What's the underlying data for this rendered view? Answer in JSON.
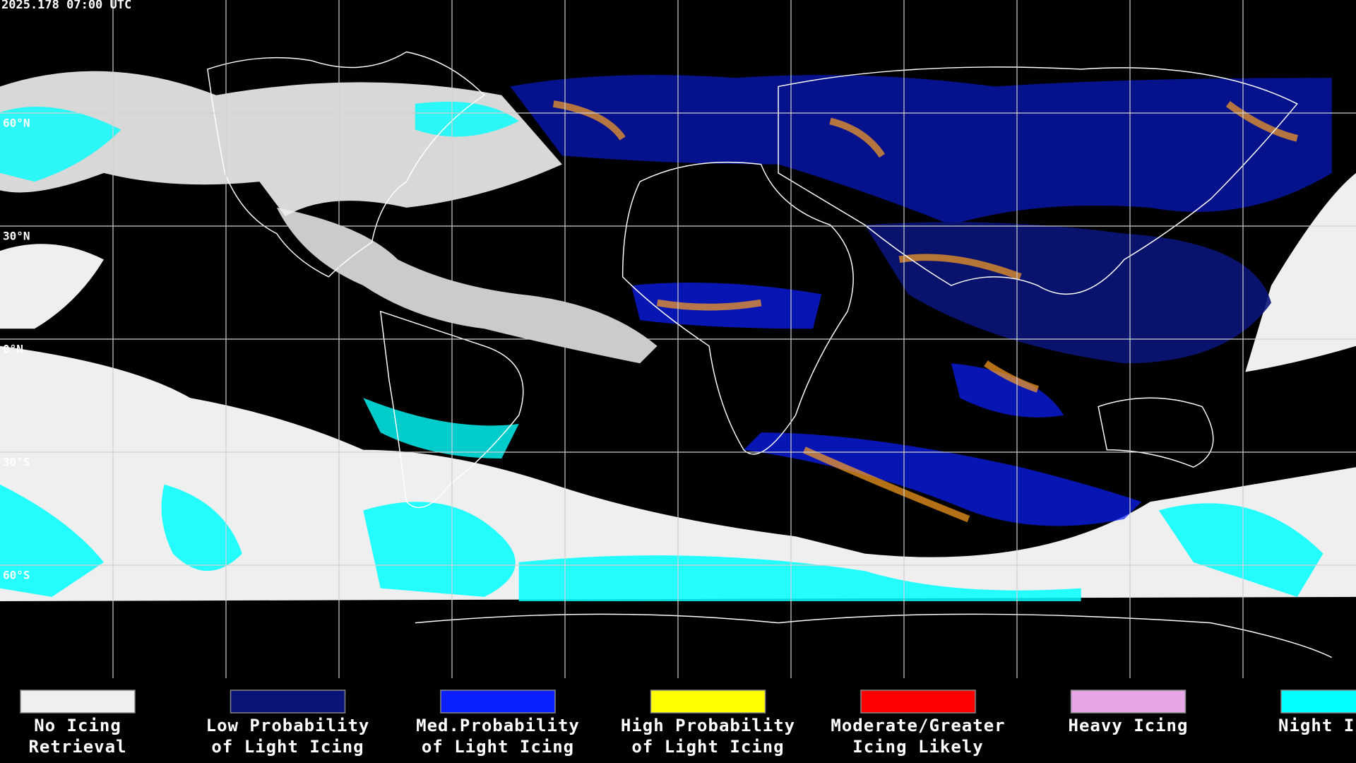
{
  "timestamp": "2025.178 07:00 UTC",
  "grid": {
    "latitudes": [
      {
        "value": 60,
        "label": "60°N"
      },
      {
        "value": 30,
        "label": "30°N"
      },
      {
        "value": 0,
        "label": "0°N"
      },
      {
        "value": -30,
        "label": "30°S"
      },
      {
        "value": -60,
        "label": "60°S"
      }
    ],
    "longitudes": [
      -150,
      -120,
      -90,
      -60,
      -30,
      0,
      30,
      60,
      90,
      120,
      150
    ]
  },
  "legend": [
    {
      "lines": [
        "No Icing",
        "Retrieval"
      ],
      "color": "#efefef"
    },
    {
      "lines": [
        "Low Probability",
        "of Light Icing"
      ],
      "color": "#0a1478"
    },
    {
      "lines": [
        "Med.Probability",
        "of Light Icing"
      ],
      "color": "#0a20ff"
    },
    {
      "lines": [
        "High Probability",
        "of Light Icing"
      ],
      "color": "#ffff00"
    },
    {
      "lines": [
        "Moderate/Greater",
        "Icing Likely"
      ],
      "color": "#ff0000"
    },
    {
      "lines": [
        "Heavy Icing"
      ],
      "color": "#e6a6e6"
    },
    {
      "lines": [
        "Night Icing"
      ],
      "color": "#00ffff"
    }
  ]
}
